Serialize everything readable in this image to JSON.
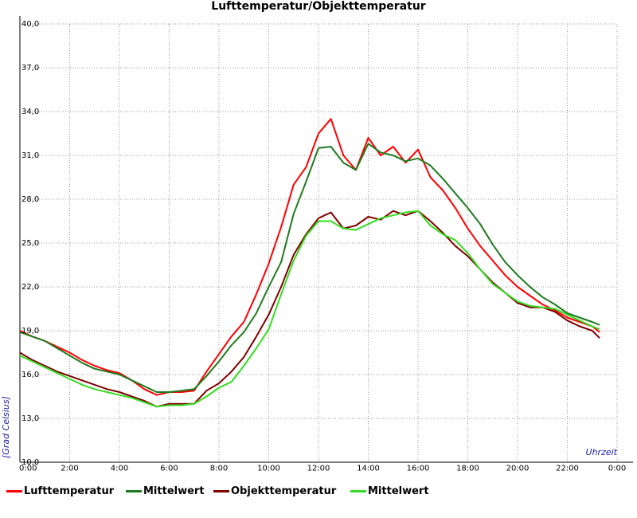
{
  "chart_data": {
    "type": "line",
    "title": "Lufttemperatur/Objekttemperatur",
    "xlabel": "Uhrzeit",
    "ylabel": "[Grad Celsius]",
    "xlim": [
      0,
      24
    ],
    "ylim": [
      10,
      40
    ],
    "x_tick_labels": [
      "0:00",
      "2:00",
      "4:00",
      "6:00",
      "8:00",
      "10:00",
      "12:00",
      "14:00",
      "16:00",
      "18:00",
      "20:00",
      "22:00",
      "0:00"
    ],
    "y_tick_labels": [
      "10,0",
      "13,0",
      "16,0",
      "19,0",
      "22,0",
      "25,0",
      "28,0",
      "31,0",
      "34,0",
      "37,0",
      "40,0"
    ],
    "grid": true,
    "legend_position": "bottom",
    "x": [
      0,
      0.5,
      1,
      1.5,
      2,
      2.5,
      3,
      3.5,
      4,
      4.5,
      5,
      5.5,
      6,
      6.5,
      7,
      7.5,
      8,
      8.5,
      9,
      9.5,
      10,
      10.5,
      11,
      11.5,
      12,
      12.5,
      13,
      13.5,
      14,
      14.5,
      15,
      15.5,
      16,
      16.5,
      17,
      17.5,
      18,
      18.5,
      19,
      19.5,
      20,
      20.5,
      21,
      21.5,
      22,
      22.5,
      23,
      23.3
    ],
    "series": [
      {
        "name": "Lufttemperatur",
        "color": "#ff0000",
        "values": [
          19.0,
          18.6,
          18.3,
          17.9,
          17.5,
          17.0,
          16.6,
          16.3,
          16.1,
          15.6,
          15.0,
          14.6,
          14.8,
          14.8,
          14.9,
          16.2,
          17.4,
          18.6,
          19.6,
          21.5,
          23.6,
          26.1,
          29.0,
          30.2,
          32.5,
          33.5,
          31.0,
          30.0,
          32.2,
          31.0,
          31.6,
          30.5,
          31.4,
          29.5,
          28.6,
          27.4,
          26.0,
          24.8,
          23.8,
          22.8,
          22.0,
          21.4,
          20.8,
          20.4,
          19.9,
          19.6,
          19.3,
          18.9
        ]
      },
      {
        "name": "Mittelwert",
        "color": "#1e7a1e",
        "values": [
          18.9,
          18.6,
          18.3,
          17.8,
          17.3,
          16.8,
          16.4,
          16.2,
          16.0,
          15.6,
          15.2,
          14.8,
          14.8,
          14.9,
          15.0,
          15.9,
          16.9,
          18.0,
          18.9,
          20.2,
          22.0,
          23.7,
          27.0,
          29.2,
          31.5,
          31.6,
          30.5,
          30.0,
          31.8,
          31.2,
          31.0,
          30.6,
          30.8,
          30.3,
          29.4,
          28.4,
          27.4,
          26.3,
          24.9,
          23.7,
          22.8,
          22.0,
          21.3,
          20.8,
          20.2,
          19.9,
          19.6,
          19.4
        ]
      },
      {
        "name": "Objekttemperatur",
        "color": "#800000",
        "values": [
          17.5,
          17.0,
          16.6,
          16.2,
          15.9,
          15.6,
          15.3,
          15.0,
          14.8,
          14.5,
          14.2,
          13.8,
          14.0,
          14.0,
          14.0,
          14.9,
          15.4,
          16.2,
          17.2,
          18.6,
          20.1,
          22.0,
          24.2,
          25.6,
          26.7,
          27.1,
          26.0,
          26.2,
          26.8,
          26.6,
          27.2,
          26.9,
          27.2,
          26.5,
          25.7,
          24.8,
          24.1,
          23.2,
          22.3,
          21.6,
          20.9,
          20.6,
          20.6,
          20.3,
          19.7,
          19.3,
          19.0,
          18.5
        ]
      },
      {
        "name": "Mittelwert",
        "color": "#33dd22",
        "values": [
          17.3,
          16.9,
          16.5,
          16.1,
          15.7,
          15.3,
          15.0,
          14.8,
          14.6,
          14.4,
          14.1,
          13.8,
          13.9,
          13.9,
          14.0,
          14.5,
          15.1,
          15.5,
          16.6,
          17.8,
          19.1,
          21.5,
          23.8,
          25.5,
          26.5,
          26.5,
          26.0,
          25.9,
          26.3,
          26.7,
          26.9,
          27.1,
          27.2,
          26.2,
          25.6,
          25.2,
          24.3,
          23.2,
          22.2,
          21.6,
          21.0,
          20.7,
          20.6,
          20.5,
          20.1,
          19.7,
          19.3,
          19.1
        ]
      }
    ]
  }
}
